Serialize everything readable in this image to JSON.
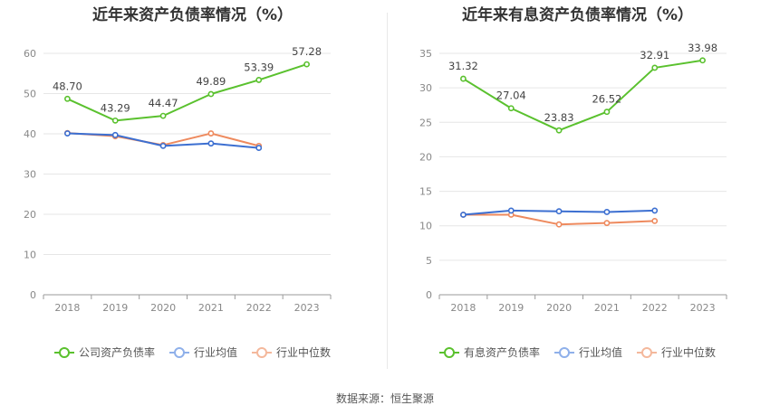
{
  "chart_data": [
    {
      "type": "line",
      "title": "近年来资产负债率情况（%）",
      "x": [
        "2018",
        "2019",
        "2020",
        "2021",
        "2022",
        "2023"
      ],
      "ylim": [
        0,
        60
      ],
      "yticks": [
        0,
        10,
        20,
        30,
        40,
        50,
        60
      ],
      "grid": true,
      "legend_position": "bottom",
      "series": [
        {
          "name": "公司资产负债率",
          "color": "#5ac12e",
          "values": [
            48.7,
            43.29,
            44.47,
            49.89,
            53.39,
            57.28
          ],
          "labels": [
            "48.70",
            "43.29",
            "44.47",
            "49.89",
            "53.39",
            "57.28"
          ]
        },
        {
          "name": "行业均值",
          "color": "#3c6fd1",
          "values": [
            40.1,
            39.7,
            37.0,
            37.6,
            36.5,
            null
          ]
        },
        {
          "name": "行业中位数",
          "color": "#ee8a5e",
          "values": [
            40.2,
            39.4,
            37.2,
            40.1,
            37.0,
            null
          ]
        }
      ]
    },
    {
      "type": "line",
      "title": "近年来有息资产负债率情况（%）",
      "x": [
        "2018",
        "2019",
        "2020",
        "2021",
        "2022",
        "2023"
      ],
      "ylim": [
        0,
        35
      ],
      "yticks": [
        0,
        5,
        10,
        15,
        20,
        25,
        30,
        35
      ],
      "grid": true,
      "legend_position": "bottom",
      "series": [
        {
          "name": "有息资产负债率",
          "color": "#5ac12e",
          "values": [
            31.32,
            27.04,
            23.83,
            26.52,
            32.91,
            33.98
          ],
          "labels": [
            "31.32",
            "27.04",
            "23.83",
            "26.52",
            "32.91",
            "33.98"
          ]
        },
        {
          "name": "行业均值",
          "color": "#3c6fd1",
          "values": [
            11.6,
            12.2,
            12.1,
            12.0,
            12.2,
            null
          ]
        },
        {
          "name": "行业中位数",
          "color": "#ee8a5e",
          "values": [
            11.6,
            11.6,
            10.2,
            10.4,
            10.7,
            null
          ]
        }
      ]
    }
  ],
  "legend_colors": {
    "faded_blue": "#8fb0ea",
    "faded_orange": "#f4b89c",
    "main_green": "#5ac12e"
  },
  "footer": {
    "source": "数据来源：恒生聚源"
  }
}
